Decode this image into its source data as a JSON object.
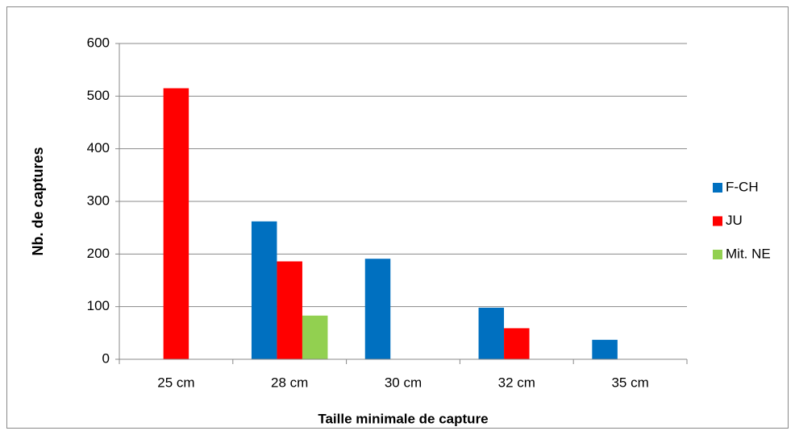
{
  "chart_data": {
    "type": "bar",
    "x_label": "Taille minimale de capture",
    "y_label": "Nb. de captures",
    "categories": [
      "25 cm",
      "28 cm",
      "30 cm",
      "32 cm",
      "35 cm"
    ],
    "series": [
      {
        "name": "F-CH",
        "color": "#0070c0",
        "values": [
          null,
          262,
          191,
          98,
          37
        ]
      },
      {
        "name": "JU",
        "color": "#ff0000",
        "values": [
          515,
          186,
          null,
          59,
          null
        ]
      },
      {
        "name": "Mit. NE",
        "color": "#92d050",
        "values": [
          null,
          83,
          null,
          null,
          null
        ]
      }
    ],
    "ylim": [
      0,
      600
    ],
    "yticks": [
      0,
      100,
      200,
      300,
      400,
      500,
      600
    ],
    "grid": true,
    "legend": "right"
  }
}
